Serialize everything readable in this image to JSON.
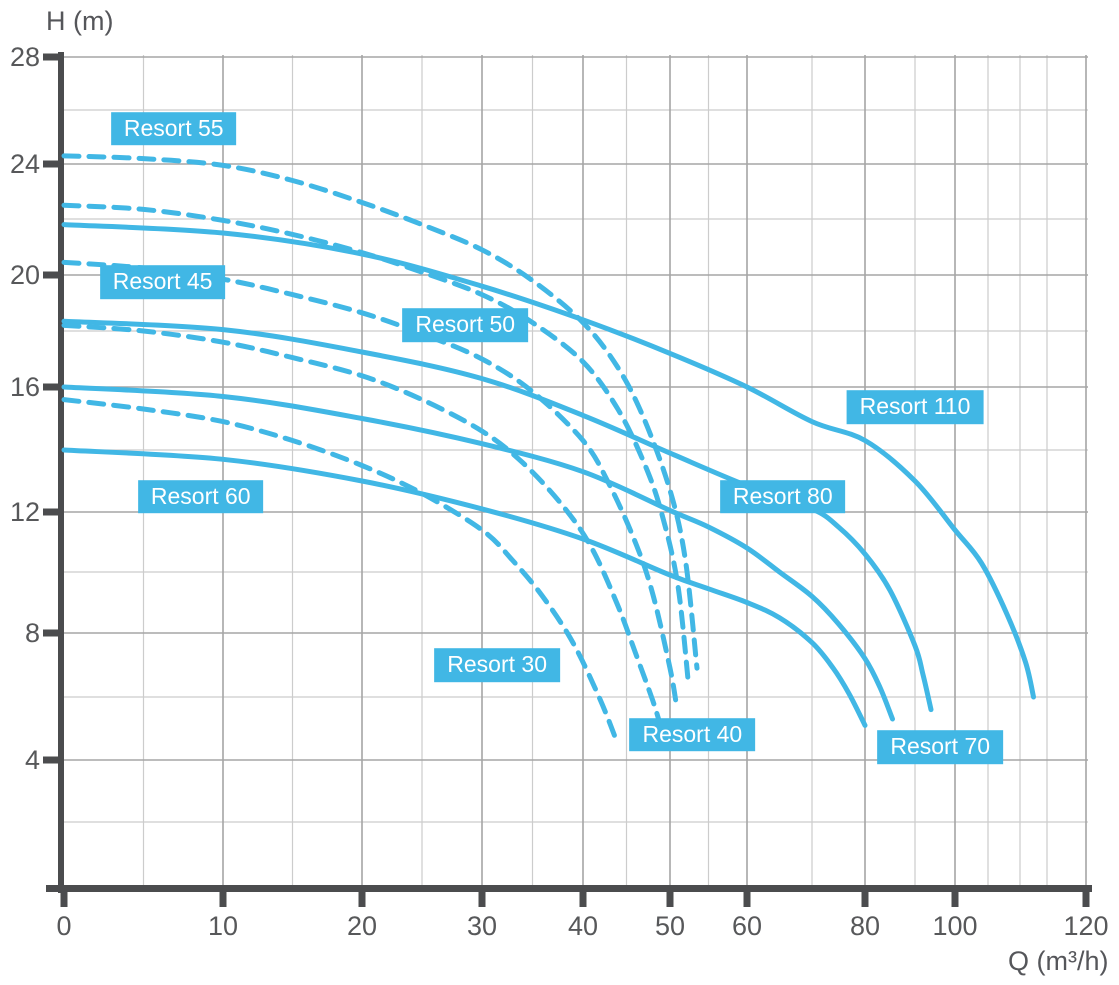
{
  "colors": {
    "curve": "#41b7e5",
    "series_label_background": "#41b7e5",
    "series_label_text": "#ffffff",
    "axis": "#4b4c4e",
    "tick_text": "#57585a",
    "grid_major": "#a5a5a5",
    "grid_minor": "#cccccc",
    "background": "#ffffff"
  },
  "chart_data": {
    "type": "line",
    "title": "",
    "xlabel": "Q (m³/h)",
    "ylabel": "H (m)",
    "xlim": [
      0,
      120
    ],
    "ylim": [
      0,
      28
    ],
    "grid": true,
    "legend_position": "inline-labels",
    "x_ticks": [
      0,
      10,
      20,
      30,
      40,
      50,
      60,
      80,
      100,
      120
    ],
    "x_minor_gridlines": [
      5,
      15,
      25,
      35,
      45,
      55,
      70,
      90,
      105,
      110,
      115
    ],
    "y_ticks": [
      28,
      24,
      20,
      16,
      12,
      8,
      4
    ],
    "y_minor_gridlines": [
      26,
      22,
      18,
      14,
      10,
      6,
      2
    ],
    "series": [
      {
        "name": "Resort 55",
        "line_style": "dashed",
        "label": {
          "text": "Resort 55",
          "q": 6.9,
          "h": 25.3
        },
        "points": [
          [
            0,
            24.3
          ],
          [
            5,
            24.2
          ],
          [
            10,
            23.95
          ],
          [
            15,
            23.4
          ],
          [
            20,
            22.6
          ],
          [
            25,
            21.8
          ],
          [
            30,
            20.9
          ],
          [
            35,
            19.8
          ],
          [
            40,
            18.3
          ],
          [
            44,
            16.7
          ],
          [
            47,
            15.0
          ],
          [
            50,
            12.7
          ],
          [
            52,
            10.4
          ],
          [
            53.5,
            6.9
          ]
        ]
      },
      {
        "name": "Resort 50",
        "line_style": "dashed",
        "label": {
          "text": "Resort 50",
          "q": 28.6,
          "h": 18.2
        },
        "points": [
          [
            0,
            22.5
          ],
          [
            5,
            22.35
          ],
          [
            10,
            21.95
          ],
          [
            15,
            21.45
          ],
          [
            20,
            20.8
          ],
          [
            25,
            20.1
          ],
          [
            30,
            19.3
          ],
          [
            35,
            18.3
          ],
          [
            40,
            16.9
          ],
          [
            44,
            15.3
          ],
          [
            47,
            13.6
          ],
          [
            49,
            12.0
          ],
          [
            51,
            9.6
          ],
          [
            52.4,
            6.4
          ]
        ]
      },
      {
        "name": "Resort 110",
        "line_style": "solid",
        "label": {
          "text": "Resort 110",
          "q": 90,
          "h": 15.35
        },
        "points": [
          [
            0,
            21.8
          ],
          [
            10,
            21.5
          ],
          [
            20,
            20.75
          ],
          [
            30,
            19.6
          ],
          [
            40,
            18.4
          ],
          [
            50,
            17.2
          ],
          [
            60,
            16.0
          ],
          [
            70,
            14.9
          ],
          [
            80,
            14.3
          ],
          [
            90,
            13.0
          ],
          [
            100,
            11.4
          ],
          [
            104,
            10.3
          ],
          [
            108,
            8.6
          ],
          [
            111,
            7.1
          ],
          [
            112.5,
            6.0
          ]
        ]
      },
      {
        "name": "Resort 45",
        "line_style": "dashed",
        "label": {
          "text": "Resort 45",
          "q": 6.2,
          "h": 19.75
        },
        "points": [
          [
            0,
            20.45
          ],
          [
            5,
            20.25
          ],
          [
            10,
            19.85
          ],
          [
            15,
            19.3
          ],
          [
            20,
            18.65
          ],
          [
            25,
            17.9
          ],
          [
            30,
            17.0
          ],
          [
            35,
            15.85
          ],
          [
            40,
            14.3
          ],
          [
            43,
            12.9
          ],
          [
            46,
            11.0
          ],
          [
            48,
            9.3
          ],
          [
            50,
            6.9
          ],
          [
            50.8,
            5.8
          ]
        ]
      },
      {
        "name": "Resort 80",
        "line_style": "solid",
        "label": {
          "text": "Resort 80",
          "q": 65.5,
          "h": 12.5
        },
        "points": [
          [
            0,
            18.35
          ],
          [
            10,
            18.05
          ],
          [
            20,
            17.25
          ],
          [
            30,
            16.3
          ],
          [
            40,
            15.1
          ],
          [
            50,
            13.9
          ],
          [
            60,
            12.85
          ],
          [
            70,
            12.1
          ],
          [
            75,
            11.5
          ],
          [
            80,
            10.6
          ],
          [
            85,
            9.4
          ],
          [
            90,
            7.6
          ],
          [
            92,
            6.7
          ],
          [
            94,
            5.6
          ]
        ]
      },
      {
        "name": "Resort 40",
        "line_style": "dashed",
        "label": {
          "text": "Resort 40",
          "q": 52.9,
          "h": 4.8
        },
        "points": [
          [
            0,
            18.2
          ],
          [
            5,
            18.0
          ],
          [
            10,
            17.6
          ],
          [
            15,
            17.05
          ],
          [
            20,
            16.4
          ],
          [
            25,
            15.6
          ],
          [
            30,
            14.6
          ],
          [
            34,
            13.6
          ],
          [
            38,
            12.2
          ],
          [
            41,
            10.8
          ],
          [
            44,
            8.9
          ],
          [
            46,
            7.4
          ],
          [
            48,
            5.9
          ],
          [
            48.9,
            5.1
          ]
        ]
      },
      {
        "name": "Resort 70",
        "line_style": "solid",
        "label": {
          "text": "Resort 70",
          "q": 96.3,
          "h": 4.4
        },
        "points": [
          [
            0,
            16.0
          ],
          [
            10,
            15.7
          ],
          [
            20,
            15.0
          ],
          [
            30,
            14.2
          ],
          [
            40,
            13.3
          ],
          [
            50,
            12.05
          ],
          [
            55,
            11.5
          ],
          [
            60,
            10.8
          ],
          [
            65,
            10.0
          ],
          [
            70,
            9.2
          ],
          [
            75,
            8.3
          ],
          [
            80,
            7.2
          ],
          [
            83,
            6.3
          ],
          [
            85.5,
            5.3
          ]
        ]
      },
      {
        "name": "Resort 30",
        "line_style": "dashed",
        "label": {
          "text": "Resort 30",
          "q": 31.5,
          "h": 7.0
        },
        "points": [
          [
            0,
            15.6
          ],
          [
            5,
            15.3
          ],
          [
            10,
            14.9
          ],
          [
            15,
            14.3
          ],
          [
            20,
            13.5
          ],
          [
            25,
            12.6
          ],
          [
            30,
            11.4
          ],
          [
            33,
            10.4
          ],
          [
            36,
            9.2
          ],
          [
            39,
            7.7
          ],
          [
            42,
            5.9
          ],
          [
            44,
            4.5
          ]
        ]
      },
      {
        "name": "Resort 60",
        "line_style": "solid",
        "label": {
          "text": "Resort 60",
          "q": 8.6,
          "h": 12.5
        },
        "points": [
          [
            0,
            14.0
          ],
          [
            10,
            13.7
          ],
          [
            20,
            13.0
          ],
          [
            30,
            12.1
          ],
          [
            40,
            11.1
          ],
          [
            50,
            9.9
          ],
          [
            55,
            9.45
          ],
          [
            60,
            9.0
          ],
          [
            65,
            8.5
          ],
          [
            70,
            7.7
          ],
          [
            74,
            6.9
          ],
          [
            77,
            6.1
          ],
          [
            80,
            5.1
          ]
        ]
      }
    ]
  }
}
